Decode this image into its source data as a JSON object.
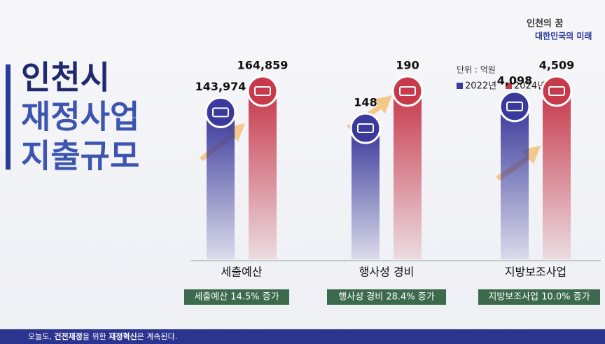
{
  "chart_data": {
    "type": "bar",
    "title_lines": [
      "인천시",
      "재정사업",
      "지출규모"
    ],
    "unit_label": "단위 : 억원",
    "categories": [
      "세출예산",
      "행사성 경비",
      "지방보조사업"
    ],
    "series": [
      {
        "name": "2022년",
        "color": "#3b3a9c",
        "values": [
          143974,
          148,
          4098
        ],
        "value_labels": [
          "143,974",
          "148",
          "4,098"
        ]
      },
      {
        "name": "2024년",
        "color": "#c63a4c",
        "values": [
          164859,
          190,
          4509
        ],
        "value_labels": [
          "164,859",
          "190",
          "4,509"
        ]
      }
    ],
    "badges": [
      "세출예산 14.5% 증가",
      "행사성 경비  28.4% 증가",
      "지방보조사업 10.0% 증가"
    ]
  },
  "logo": {
    "line1": "인천의 꿈",
    "line2": "대한민국의 미래"
  },
  "footer": [
    "오늘도, ",
    "건전재정",
    "을 위한 ",
    "재정혁신",
    "은 계속된다."
  ]
}
